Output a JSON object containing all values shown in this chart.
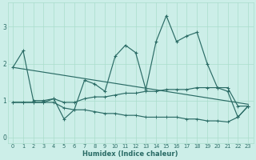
{
  "xlabel": "Humidex (Indice chaleur)",
  "background_color": "#cceee8",
  "grid_color": "#aaddcc",
  "line_color": "#2a6b65",
  "xlim": [
    -0.5,
    23.5
  ],
  "ylim": [
    -0.15,
    3.65
  ],
  "xticks": [
    0,
    1,
    2,
    3,
    4,
    5,
    6,
    7,
    8,
    9,
    10,
    11,
    12,
    13,
    14,
    15,
    16,
    17,
    18,
    19,
    20,
    21,
    22,
    23
  ],
  "yticks": [
    0,
    1,
    2,
    3
  ],
  "series": {
    "line_main": [
      1.9,
      2.35,
      1.0,
      1.0,
      1.05,
      0.5,
      0.75,
      1.55,
      1.45,
      1.25,
      2.2,
      2.5,
      2.3,
      1.3,
      2.6,
      3.3,
      2.6,
      2.75,
      2.85,
      2.0,
      1.35,
      1.25,
      0.55,
      0.85
    ],
    "line_flat_upper": {
      "x": [
        0,
        1,
        2,
        3,
        4,
        5,
        6,
        7,
        8,
        9,
        10,
        11,
        12,
        13,
        14,
        15,
        16,
        17,
        18,
        19,
        20,
        21,
        22,
        23
      ],
      "y": [
        0.95,
        0.95,
        0.95,
        0.95,
        1.05,
        0.95,
        0.95,
        1.05,
        1.1,
        1.1,
        1.15,
        1.2,
        1.2,
        1.25,
        1.25,
        1.3,
        1.3,
        1.3,
        1.35,
        1.35,
        1.35,
        1.35,
        0.85,
        0.85
      ]
    },
    "trend_descend": {
      "x": [
        0,
        23
      ],
      "y": [
        1.9,
        0.9
      ]
    },
    "line_bottom": {
      "x": [
        0,
        1,
        2,
        3,
        4,
        5,
        6,
        7,
        8,
        9,
        10,
        11,
        12,
        13,
        14,
        15,
        16,
        17,
        18,
        19,
        20,
        21,
        22,
        23
      ],
      "y": [
        0.95,
        0.95,
        0.95,
        0.95,
        0.95,
        0.8,
        0.75,
        0.75,
        0.7,
        0.65,
        0.65,
        0.6,
        0.6,
        0.55,
        0.55,
        0.55,
        0.55,
        0.5,
        0.5,
        0.45,
        0.45,
        0.42,
        0.55,
        0.85
      ]
    }
  }
}
